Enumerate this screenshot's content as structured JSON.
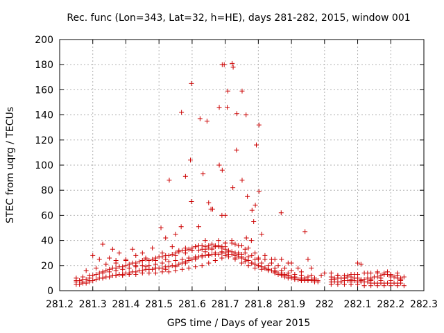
{
  "chart_data": {
    "type": "scatter",
    "title": "Rec. func (Lon=343, Lat=32, h=HE), days 281-282, 2015, window 001",
    "xlabel": "GPS time / Days of year 2015",
    "ylabel": "STEC from uqrg / TECUs",
    "xlim": [
      281.2,
      282.3
    ],
    "ylim": [
      0,
      200
    ],
    "xticks": [
      "281.2",
      "281.3",
      "281.4",
      "281.5",
      "281.6",
      "281.7",
      "281.8",
      "281.9",
      "282",
      "282.1",
      "282.2",
      "282.3"
    ],
    "yticks": [
      "0",
      "20",
      "40",
      "60",
      "80",
      "100",
      "120",
      "140",
      "160",
      "180",
      "200"
    ],
    "grid": true,
    "marker": "plus",
    "color": "#cc0000",
    "series": [
      {
        "x": [
          281.697,
          281.721,
          281.724,
          281.691,
          281.751,
          281.708,
          281.735,
          281.598,
          281.763,
          281.568,
          281.624,
          281.645,
          281.802,
          281.706,
          281.682,
          281.734,
          281.794,
          281.595,
          281.58,
          281.682,
          281.531,
          281.723,
          281.802,
          281.598,
          281.633,
          281.691,
          281.751,
          281.767,
          281.791,
          281.781,
          281.786,
          281.869,
          281.65,
          281.662,
          281.657,
          281.69,
          281.7,
          281.567,
          281.941,
          281.506,
          281.764,
          281.779,
          281.62,
          281.73,
          281.81,
          281.55,
          281.64,
          281.68,
          281.69,
          281.7,
          281.52,
          281.6,
          281.66,
          281.74,
          281.76,
          281.8,
          281.85,
          281.9,
          281.95,
          282.02,
          282.1,
          282.11,
          281.33,
          281.36,
          281.38,
          281.42,
          281.45,
          281.48,
          281.51,
          281.54,
          281.56,
          281.58,
          281.61,
          281.63,
          281.65,
          281.67,
          281.7,
          281.72,
          281.75,
          281.77,
          281.79,
          281.82,
          281.84,
          281.87,
          281.89,
          281.92,
          281.96,
          282.0,
          282.04,
          282.07,
          282.09,
          282.13,
          282.16,
          282.19,
          282.22,
          281.3,
          281.32,
          281.35,
          281.37,
          281.4,
          281.43,
          281.46,
          281.49,
          281.52,
          281.55,
          281.58,
          281.6,
          281.62,
          281.64,
          281.66,
          281.68,
          281.7,
          281.72,
          281.74,
          281.76,
          281.78,
          281.8,
          281.82,
          281.84,
          281.86,
          281.88,
          281.9,
          281.93,
          281.96,
          281.99,
          282.03,
          282.06,
          282.08,
          282.11,
          282.14,
          282.17,
          282.2,
          282.23
        ],
        "y": [
          180,
          181,
          178,
          180,
          159,
          159,
          141,
          165,
          140,
          142,
          137,
          135,
          132,
          146,
          146,
          112,
          116,
          104,
          91,
          100,
          88,
          82,
          79,
          71,
          93,
          96,
          88,
          75,
          68,
          64,
          55,
          62,
          70,
          65,
          65,
          60,
          60,
          51,
          47,
          50,
          42,
          40,
          51,
          37,
          45,
          45,
          40,
          40,
          35,
          35,
          42,
          32,
          33,
          30,
          30,
          25,
          25,
          22,
          25,
          14,
          22,
          21,
          37,
          33,
          30,
          33,
          30,
          34,
          30,
          35,
          32,
          34,
          35,
          33,
          34,
          35,
          38,
          38,
          36,
          34,
          30,
          28,
          25,
          25,
          22,
          18,
          18,
          14,
          12,
          12,
          13,
          14,
          15,
          15,
          14,
          28,
          25,
          26,
          24,
          25,
          28,
          26,
          24,
          25,
          28,
          30,
          32,
          32,
          33,
          34,
          36,
          38,
          40,
          36,
          33,
          28,
          26,
          25,
          22,
          20,
          18,
          16,
          15,
          12,
          12,
          10,
          10,
          9,
          8,
          8,
          8,
          8,
          8
        ]
      },
      {
        "x": [
          281.25,
          281.26,
          281.27,
          281.28,
          281.29,
          281.3,
          281.31,
          281.32,
          281.33,
          281.34,
          281.35,
          281.36,
          281.37,
          281.38,
          281.39,
          281.4,
          281.41,
          281.42,
          281.43,
          281.44,
          281.45,
          281.46,
          281.47,
          281.48,
          281.49,
          281.5,
          281.51,
          281.52,
          281.53,
          281.54,
          281.55,
          281.56,
          281.57,
          281.58,
          281.59,
          281.6,
          281.61,
          281.62,
          281.63,
          281.64,
          281.65,
          281.66,
          281.67,
          281.68,
          281.69,
          281.7,
          281.71,
          281.72,
          281.73,
          281.74,
          281.75,
          281.76,
          281.77,
          281.78,
          281.79,
          281.8,
          281.81,
          281.82,
          281.83,
          281.84,
          281.85,
          281.86,
          281.87,
          281.88,
          281.89,
          281.9,
          281.91,
          281.92,
          281.93,
          281.94,
          281.95,
          281.96,
          281.97,
          281.98,
          282.02,
          282.03,
          282.04,
          282.05,
          282.06,
          282.07,
          282.08,
          282.09,
          282.1,
          282.11,
          282.12,
          282.13,
          282.14,
          282.15,
          282.16,
          282.17,
          282.18,
          282.19,
          282.2,
          282.21,
          282.22,
          282.23
        ],
        "y": [
          5,
          5,
          6,
          6,
          7,
          8,
          9,
          10,
          10,
          11,
          11,
          12,
          12,
          13,
          13,
          14,
          14,
          15,
          15,
          16,
          16,
          17,
          17,
          17,
          18,
          18,
          18,
          19,
          19,
          20,
          20,
          21,
          22,
          23,
          24,
          25,
          26,
          27,
          27,
          28,
          28,
          29,
          29,
          29,
          30,
          30,
          29,
          29,
          28,
          27,
          26,
          25,
          24,
          22,
          21,
          20,
          19,
          18,
          17,
          16,
          14,
          13,
          12,
          11,
          10,
          10,
          9,
          9,
          8,
          8,
          8,
          8,
          7,
          7,
          7,
          7,
          7,
          7,
          8,
          8,
          8,
          8,
          7,
          7,
          7,
          7,
          6,
          6,
          6,
          6,
          6,
          6,
          6,
          6,
          6,
          6
        ]
      },
      {
        "x": [
          281.25,
          281.26,
          281.27,
          281.28,
          281.29,
          281.3,
          281.31,
          281.32,
          281.33,
          281.34,
          281.35,
          281.36,
          281.37,
          281.38,
          281.39,
          281.4,
          281.41,
          281.42,
          281.43,
          281.44,
          281.45,
          281.46,
          281.47,
          281.48,
          281.49,
          281.5,
          281.51,
          281.52,
          281.53,
          281.54,
          281.55,
          281.56,
          281.57,
          281.58,
          281.59,
          281.6,
          281.61,
          281.62,
          281.63,
          281.64,
          281.65,
          281.66,
          281.67,
          281.68,
          281.69,
          281.7,
          281.71,
          281.72,
          281.73,
          281.74,
          281.75,
          281.76,
          281.77,
          281.78,
          281.79,
          281.8,
          281.81,
          281.82,
          281.83,
          281.84,
          281.85,
          281.86,
          281.87,
          281.88,
          281.89,
          281.9,
          281.91,
          281.92,
          281.93,
          281.94,
          281.95,
          281.96,
          281.97,
          281.98,
          282.02,
          282.03,
          282.04,
          282.05,
          282.06,
          282.07,
          282.08,
          282.09,
          282.1,
          282.11,
          282.12,
          282.13,
          282.14,
          282.15,
          282.16,
          282.17,
          282.18,
          282.19,
          282.2,
          282.21,
          282.22,
          282.23
        ],
        "y": [
          8,
          8,
          9,
          9,
          10,
          12,
          13,
          14,
          15,
          16,
          17,
          18,
          18,
          19,
          19,
          20,
          21,
          22,
          22,
          23,
          24,
          25,
          24,
          25,
          26,
          27,
          27,
          28,
          28,
          29,
          30,
          31,
          32,
          32,
          33,
          34,
          35,
          36,
          36,
          35,
          36,
          37,
          36,
          35,
          34,
          33,
          32,
          31,
          30,
          29,
          27,
          25,
          24,
          22,
          21,
          20,
          19,
          18,
          17,
          16,
          15,
          14,
          13,
          12,
          12,
          11,
          10,
          9,
          9,
          9,
          9,
          9,
          8,
          8,
          9,
          9,
          10,
          10,
          10,
          11,
          11,
          10,
          10,
          9,
          9,
          10,
          10,
          11,
          11,
          12,
          13,
          13,
          12,
          11,
          10,
          9
        ]
      },
      {
        "x": [
          281.25,
          281.27,
          281.29,
          281.31,
          281.33,
          281.35,
          281.37,
          281.39,
          281.41,
          281.43,
          281.45,
          281.47,
          281.49,
          281.51,
          281.53,
          281.55,
          281.57,
          281.59,
          281.61,
          281.63,
          281.65,
          281.67,
          281.69,
          281.71,
          281.73,
          281.75,
          281.77,
          281.79,
          281.81,
          281.83,
          281.85,
          281.87,
          281.89,
          281.91,
          281.93,
          281.95,
          281.97,
          282.02,
          282.04,
          282.06,
          282.08,
          282.1,
          282.12,
          282.14,
          282.16,
          282.18,
          282.2,
          282.22,
          282.24
        ],
        "y": [
          10,
          11,
          12,
          13,
          14,
          15,
          16,
          17,
          18,
          19,
          20,
          20,
          21,
          22,
          23,
          24,
          25,
          26,
          27,
          28,
          29,
          30,
          31,
          31,
          30,
          29,
          27,
          25,
          22,
          20,
          18,
          16,
          14,
          13,
          12,
          11,
          10,
          11,
          12,
          12,
          13,
          13,
          14,
          14,
          14,
          14,
          13,
          12,
          11
        ]
      },
      {
        "x": [
          281.25,
          281.27,
          281.29,
          281.31,
          281.33,
          281.35,
          281.37,
          281.39,
          281.41,
          281.43,
          281.45,
          281.47,
          281.49,
          281.51,
          281.53,
          281.55,
          281.57,
          281.59,
          281.61,
          281.63,
          281.65,
          281.67,
          281.69,
          281.71,
          281.73,
          281.75,
          281.77,
          281.79,
          281.81,
          281.83,
          281.85,
          281.87,
          281.89,
          281.91,
          281.93,
          281.95,
          281.97,
          282.02,
          282.04,
          282.06,
          282.08,
          282.1,
          282.12,
          282.14,
          282.16,
          282.18,
          282.2,
          282.22,
          282.24
        ],
        "y": [
          7,
          7,
          8,
          9,
          10,
          11,
          12,
          12,
          13,
          13,
          14,
          14,
          14,
          15,
          15,
          16,
          17,
          18,
          19,
          20,
          22,
          24,
          26,
          27,
          25,
          22,
          20,
          18,
          17,
          16,
          15,
          14,
          12,
          11,
          10,
          9,
          8,
          5,
          5,
          5,
          5,
          5,
          4,
          4,
          4,
          4,
          4,
          4,
          4
        ]
      },
      {
        "x": [
          281.28,
          281.31,
          281.34,
          281.37,
          281.4,
          281.43,
          281.46,
          281.49,
          281.52,
          281.55,
          281.58,
          281.61,
          281.64,
          281.67,
          281.7,
          281.73,
          281.76,
          281.79,
          281.82,
          281.85,
          281.88,
          281.91,
          281.94,
          281.97,
          282.05,
          282.08,
          282.11,
          282.14,
          282.17,
          282.2,
          282.23
        ],
        "y": [
          16,
          18,
          21,
          22,
          24,
          20,
          19,
          18,
          17,
          19,
          22,
          25,
          31,
          29,
          28,
          26,
          23,
          21,
          18,
          16,
          13,
          11,
          10,
          9,
          7,
          7,
          8,
          9,
          10,
          11,
          10
        ]
      }
    ]
  }
}
